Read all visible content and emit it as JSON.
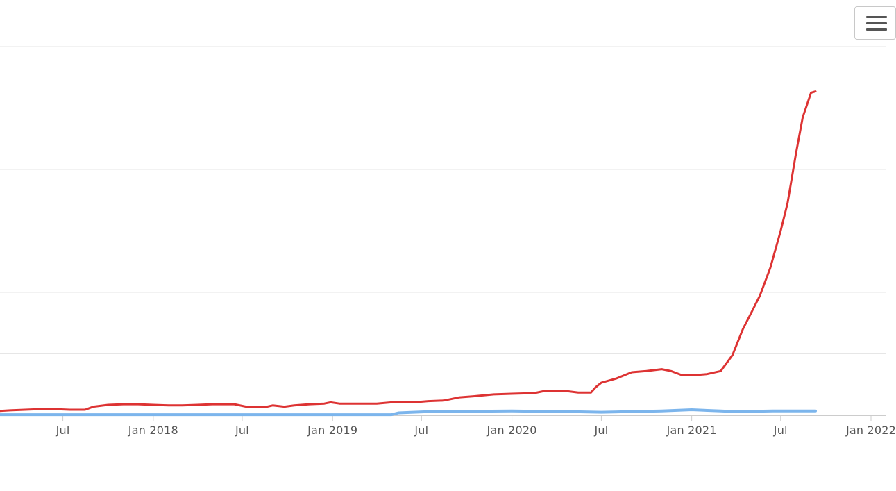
{
  "toolbar": {
    "menu_icon": "hamburger-menu-icon"
  },
  "colors": {
    "series_red": "#dd3333",
    "series_blue": "#7cb5ec",
    "grid": "#e6e6e6",
    "axis": "#cccccc",
    "tick_text": "#555555"
  },
  "chart_data": {
    "type": "line",
    "title": "",
    "xlabel": "",
    "ylabel": "",
    "grid": true,
    "legend": "none",
    "x_range": [
      "2017-02-23",
      "2022-01-01"
    ],
    "y_range": [
      0,
      6
    ],
    "x_ticks": [
      {
        "date": "2017-07-01",
        "label": "Jul"
      },
      {
        "date": "2018-01-01",
        "label": "Jan 2018"
      },
      {
        "date": "2018-07-01",
        "label": "Jul"
      },
      {
        "date": "2019-01-01",
        "label": "Jan 2019"
      },
      {
        "date": "2019-07-01",
        "label": "Jul"
      },
      {
        "date": "2020-01-01",
        "label": "Jan 2020"
      },
      {
        "date": "2020-07-01",
        "label": "Jul"
      },
      {
        "date": "2021-01-01",
        "label": "Jan 2021"
      },
      {
        "date": "2021-07-01",
        "label": "Jul"
      },
      {
        "date": "2022-01-01",
        "label": "Jan 2022"
      }
    ],
    "y_gridlines": [
      1,
      2,
      3,
      4,
      5,
      6
    ],
    "series": [
      {
        "color": "#dd3333",
        "points": [
          [
            "2017-02-23",
            0.07
          ],
          [
            "2017-03-15",
            0.08
          ],
          [
            "2017-04-15",
            0.09
          ],
          [
            "2017-05-15",
            0.1
          ],
          [
            "2017-06-15",
            0.1
          ],
          [
            "2017-07-15",
            0.09
          ],
          [
            "2017-08-15",
            0.09
          ],
          [
            "2017-09-01",
            0.14
          ],
          [
            "2017-10-01",
            0.17
          ],
          [
            "2017-11-01",
            0.18
          ],
          [
            "2017-12-01",
            0.18
          ],
          [
            "2018-01-01",
            0.17
          ],
          [
            "2018-02-01",
            0.16
          ],
          [
            "2018-03-01",
            0.16
          ],
          [
            "2018-04-01",
            0.17
          ],
          [
            "2018-05-01",
            0.18
          ],
          [
            "2018-06-15",
            0.18
          ],
          [
            "2018-07-15",
            0.13
          ],
          [
            "2018-08-15",
            0.13
          ],
          [
            "2018-09-01",
            0.16
          ],
          [
            "2018-09-25",
            0.14
          ],
          [
            "2018-10-15",
            0.16
          ],
          [
            "2018-11-15",
            0.18
          ],
          [
            "2018-12-15",
            0.19
          ],
          [
            "2018-12-28",
            0.21
          ],
          [
            "2019-01-15",
            0.19
          ],
          [
            "2019-02-15",
            0.19
          ],
          [
            "2019-04-01",
            0.19
          ],
          [
            "2019-05-01",
            0.21
          ],
          [
            "2019-06-15",
            0.21
          ],
          [
            "2019-07-15",
            0.23
          ],
          [
            "2019-08-15",
            0.24
          ],
          [
            "2019-09-15",
            0.29
          ],
          [
            "2019-10-15",
            0.31
          ],
          [
            "2019-11-25",
            0.34
          ],
          [
            "2020-01-01",
            0.35
          ],
          [
            "2020-02-15",
            0.36
          ],
          [
            "2020-03-10",
            0.4
          ],
          [
            "2020-04-15",
            0.4
          ],
          [
            "2020-05-15",
            0.37
          ],
          [
            "2020-06-10",
            0.37
          ],
          [
            "2020-06-20",
            0.46
          ],
          [
            "2020-07-01",
            0.53
          ],
          [
            "2020-08-01",
            0.6
          ],
          [
            "2020-09-01",
            0.7
          ],
          [
            "2020-10-01",
            0.72
          ],
          [
            "2020-11-01",
            0.75
          ],
          [
            "2020-11-20",
            0.72
          ],
          [
            "2020-12-10",
            0.66
          ],
          [
            "2021-01-01",
            0.65
          ],
          [
            "2021-02-01",
            0.67
          ],
          [
            "2021-03-01",
            0.72
          ],
          [
            "2021-03-25",
            0.98
          ],
          [
            "2021-04-15",
            1.4
          ],
          [
            "2021-05-01",
            1.65
          ],
          [
            "2021-05-20",
            1.95
          ],
          [
            "2021-06-10",
            2.4
          ],
          [
            "2021-07-01",
            3.0
          ],
          [
            "2021-07-15",
            3.45
          ],
          [
            "2021-08-01",
            4.25
          ],
          [
            "2021-08-15",
            4.85
          ],
          [
            "2021-09-01",
            5.25
          ],
          [
            "2021-09-10",
            5.27
          ]
        ]
      },
      {
        "color": "#7cb5ec",
        "points": [
          [
            "2017-02-23",
            0.01
          ],
          [
            "2018-06-01",
            0.01
          ],
          [
            "2019-05-01",
            0.01
          ],
          [
            "2019-05-15",
            0.04
          ],
          [
            "2019-07-15",
            0.06
          ],
          [
            "2020-01-01",
            0.07
          ],
          [
            "2020-05-01",
            0.06
          ],
          [
            "2020-07-01",
            0.05
          ],
          [
            "2020-11-01",
            0.07
          ],
          [
            "2021-01-01",
            0.09
          ],
          [
            "2021-03-01",
            0.07
          ],
          [
            "2021-04-01",
            0.06
          ],
          [
            "2021-06-15",
            0.07
          ],
          [
            "2021-09-10",
            0.07
          ]
        ]
      }
    ]
  }
}
